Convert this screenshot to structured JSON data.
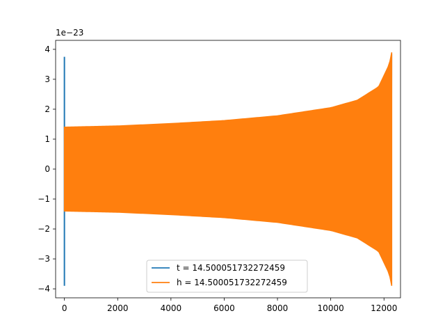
{
  "chart_data": {
    "type": "line",
    "title": "",
    "xlabel": "",
    "ylabel": "",
    "y_offset_text": "1e−23",
    "xlim": [
      -330,
      12620
    ],
    "ylim": [
      -4.3,
      4.3
    ],
    "x_ticks": [
      0,
      2000,
      4000,
      6000,
      8000,
      10000,
      12000
    ],
    "x_tick_labels": [
      "0",
      "2000",
      "4000",
      "6000",
      "8000",
      "10000",
      "12000"
    ],
    "y_ticks": [
      -4,
      -3,
      -2,
      -1,
      0,
      1,
      2,
      3,
      4
    ],
    "y_tick_labels": [
      "−4",
      "−3",
      "−2",
      "−1",
      "0",
      "1",
      "2",
      "3",
      "4"
    ],
    "grid": false,
    "legend_position": "lower-center",
    "series": [
      {
        "name": "t = 14.500051732272459",
        "color": "#1f77b4",
        "x_range": [
          0,
          12290
        ],
        "initial_spike": {
          "x": 0,
          "max": 3.75,
          "min": -3.9
        },
        "envelope": {
          "x": [
            0,
            2000,
            4000,
            6000,
            8000,
            10000,
            11000,
            11800,
            12200,
            12290
          ],
          "amplitude": [
            1.4,
            1.44,
            1.52,
            1.62,
            1.78,
            2.05,
            2.3,
            2.75,
            3.5,
            3.85
          ]
        }
      },
      {
        "name": "h = 14.500051732272459",
        "color": "#ff7f0e",
        "x_range": [
          0,
          12290
        ],
        "envelope": {
          "x": [
            0,
            2000,
            4000,
            6000,
            8000,
            10000,
            11000,
            11800,
            12200,
            12290
          ],
          "amplitude": [
            1.4,
            1.44,
            1.52,
            1.62,
            1.78,
            2.05,
            2.3,
            2.75,
            3.5,
            3.9
          ]
        }
      }
    ]
  }
}
